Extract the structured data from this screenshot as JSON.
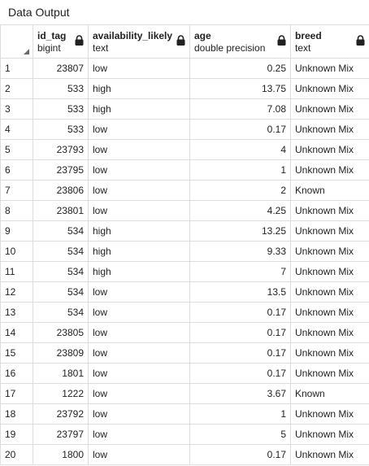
{
  "panel": {
    "title": "Data Output"
  },
  "columns": [
    {
      "name": "id_tag",
      "type": "bigint",
      "align": "num"
    },
    {
      "name": "availability_likely",
      "type": "text",
      "align": "txt"
    },
    {
      "name": "age",
      "type": "double precision",
      "align": "num"
    },
    {
      "name": "breed",
      "type": "text",
      "align": "txt"
    }
  ],
  "rows": [
    {
      "num": "1",
      "cells": [
        "23807",
        "low",
        "0.25",
        "Unknown Mix"
      ]
    },
    {
      "num": "2",
      "cells": [
        "533",
        "high",
        "13.75",
        "Unknown Mix"
      ]
    },
    {
      "num": "3",
      "cells": [
        "533",
        "high",
        "7.08",
        "Unknown Mix"
      ]
    },
    {
      "num": "4",
      "cells": [
        "533",
        "low",
        "0.17",
        "Unknown Mix"
      ]
    },
    {
      "num": "5",
      "cells": [
        "23793",
        "low",
        "4",
        "Unknown Mix"
      ]
    },
    {
      "num": "6",
      "cells": [
        "23795",
        "low",
        "1",
        "Unknown Mix"
      ]
    },
    {
      "num": "7",
      "cells": [
        "23806",
        "low",
        "2",
        "Known"
      ]
    },
    {
      "num": "8",
      "cells": [
        "23801",
        "low",
        "4.25",
        "Unknown Mix"
      ]
    },
    {
      "num": "9",
      "cells": [
        "534",
        "high",
        "13.25",
        "Unknown Mix"
      ]
    },
    {
      "num": "10",
      "cells": [
        "534",
        "high",
        "9.33",
        "Unknown Mix"
      ]
    },
    {
      "num": "11",
      "cells": [
        "534",
        "high",
        "7",
        "Unknown Mix"
      ]
    },
    {
      "num": "12",
      "cells": [
        "534",
        "low",
        "13.5",
        "Unknown Mix"
      ]
    },
    {
      "num": "13",
      "cells": [
        "534",
        "low",
        "0.17",
        "Unknown Mix"
      ]
    },
    {
      "num": "14",
      "cells": [
        "23805",
        "low",
        "0.17",
        "Unknown Mix"
      ]
    },
    {
      "num": "15",
      "cells": [
        "23809",
        "low",
        "0.17",
        "Unknown Mix"
      ]
    },
    {
      "num": "16",
      "cells": [
        "1801",
        "low",
        "0.17",
        "Unknown Mix"
      ]
    },
    {
      "num": "17",
      "cells": [
        "1222",
        "low",
        "3.67",
        "Known"
      ]
    },
    {
      "num": "18",
      "cells": [
        "23792",
        "low",
        "1",
        "Unknown Mix"
      ]
    },
    {
      "num": "19",
      "cells": [
        "23797",
        "low",
        "5",
        "Unknown Mix"
      ]
    },
    {
      "num": "20",
      "cells": [
        "1800",
        "low",
        "0.17",
        "Unknown Mix"
      ]
    }
  ]
}
